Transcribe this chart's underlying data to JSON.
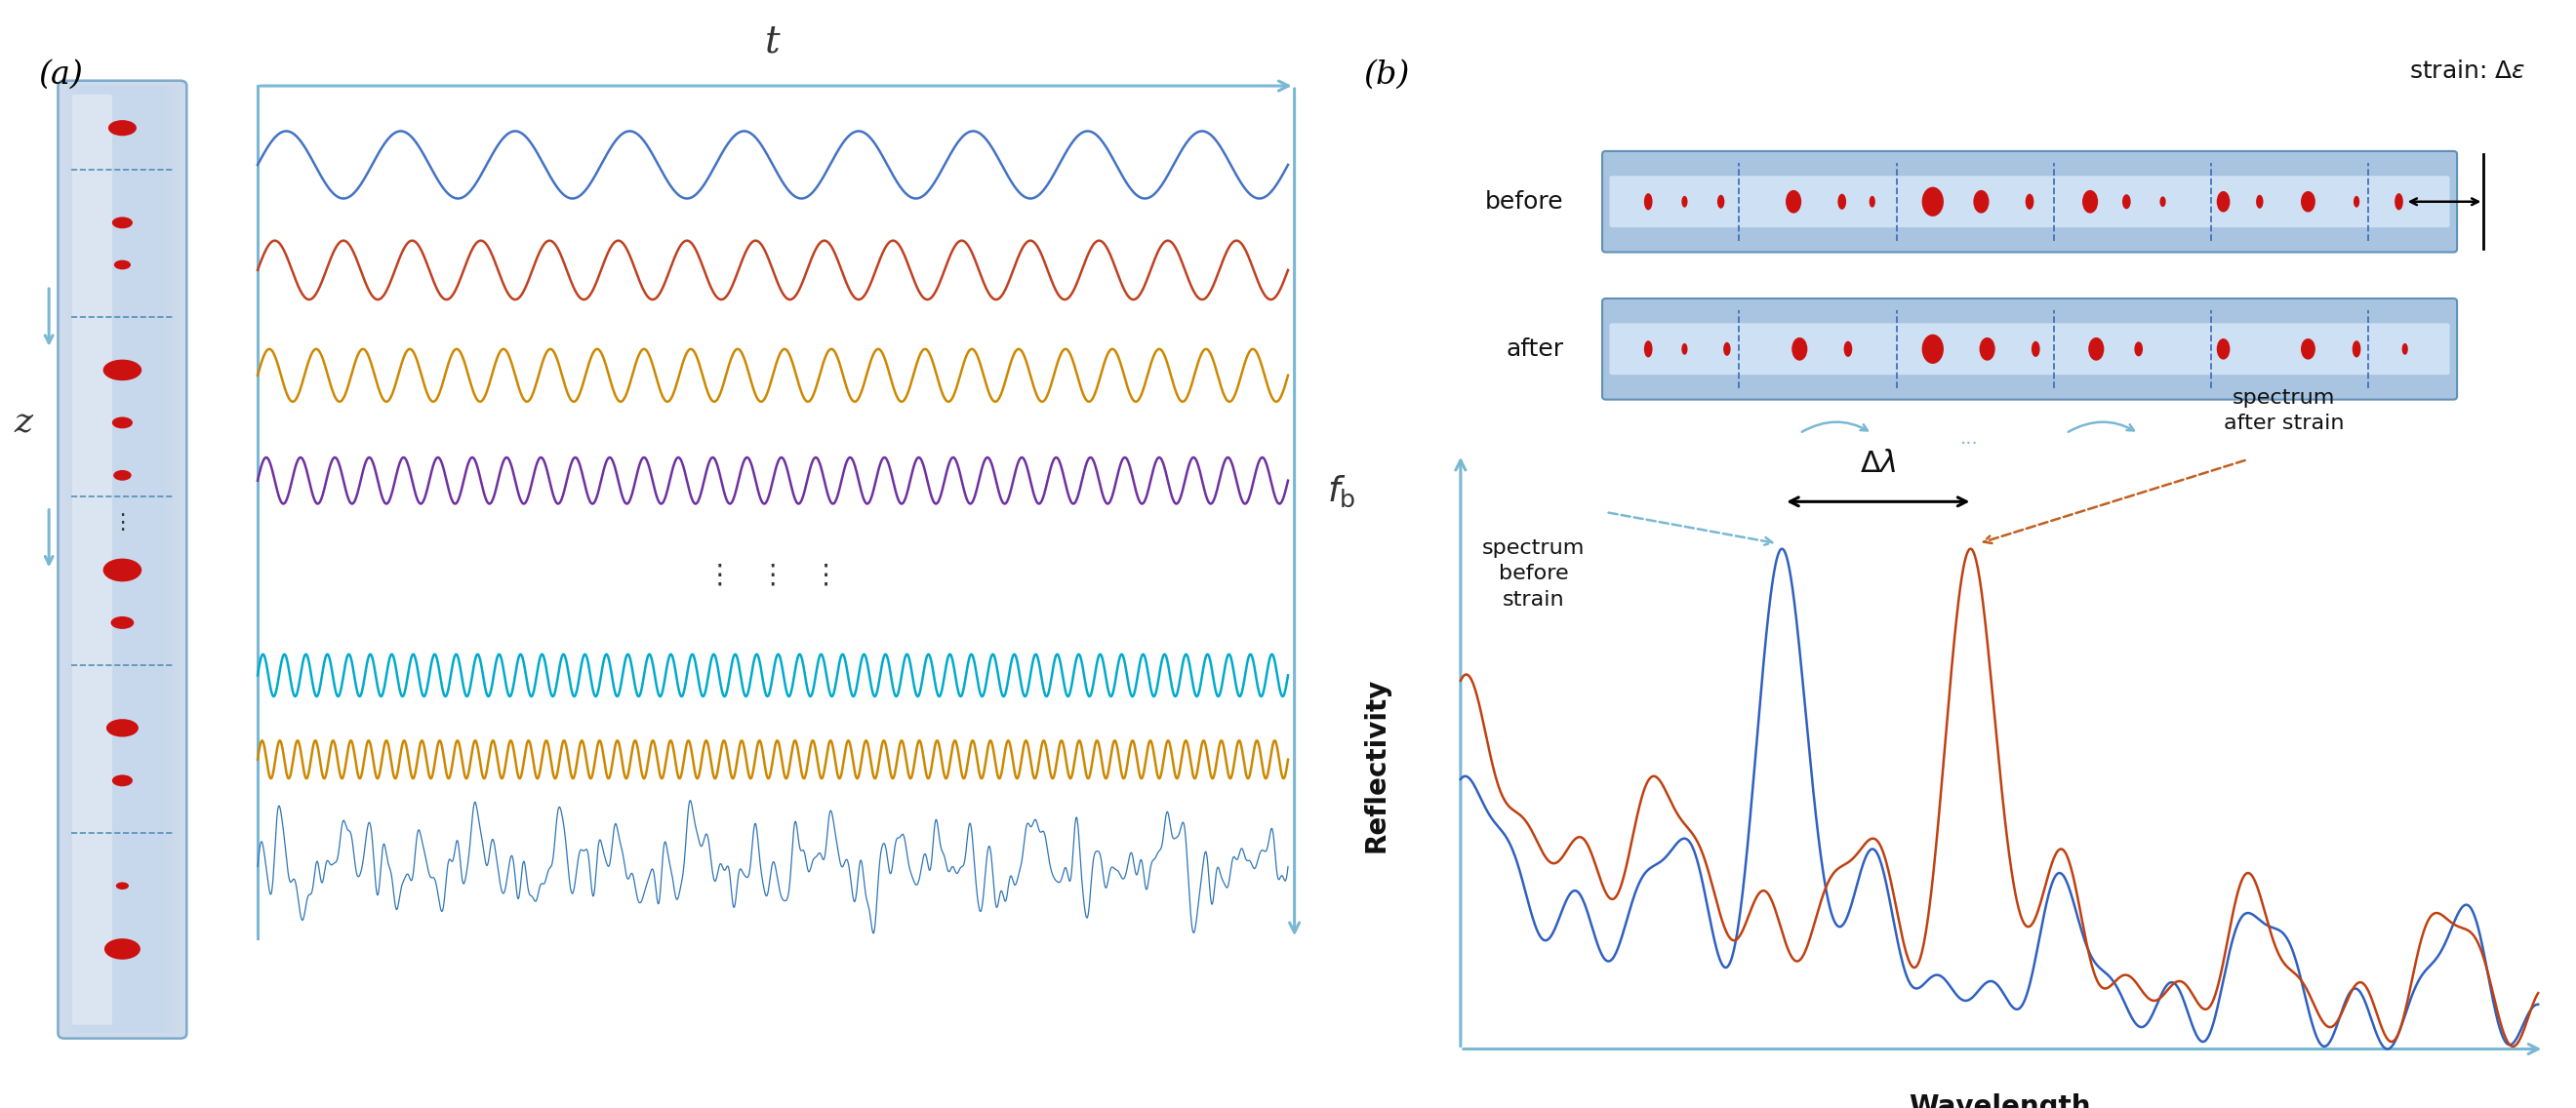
{
  "fig_width": 26.4,
  "fig_height": 11.36,
  "bg_color": "#ffffff",
  "fiber_color_center": "#c8d8f0",
  "fiber_color_edge": "#7aadcc",
  "dot_color": "#cc1111",
  "arrow_color": "#7ab8d4",
  "wave_colors_a": [
    "#4472c4",
    "#c04020",
    "#cc8800",
    "#7030a0",
    "#00aacc",
    "#cc8800"
  ],
  "superposition_color": "#2e75b6",
  "label_a": "(a)",
  "label_b": "(b)",
  "t_label": "t",
  "z_label": "z",
  "fb_label": "$f_{\\mathrm{b}}$",
  "before_label": "before",
  "after_label": "after",
  "strain_label": "strain: $\\Delta\\varepsilon$",
  "reflectivity_label": "Reflectivity",
  "wavelength_label": "Wavelength",
  "delta_lambda_label": "$\\Delta\\lambda$",
  "spectrum_before_label": "spectrum\nbefore\nstrain",
  "spectrum_after_label": "spectrum\nafter strain",
  "blue_spec_color": "#3060c0",
  "orange_spec_color": "#c04010"
}
